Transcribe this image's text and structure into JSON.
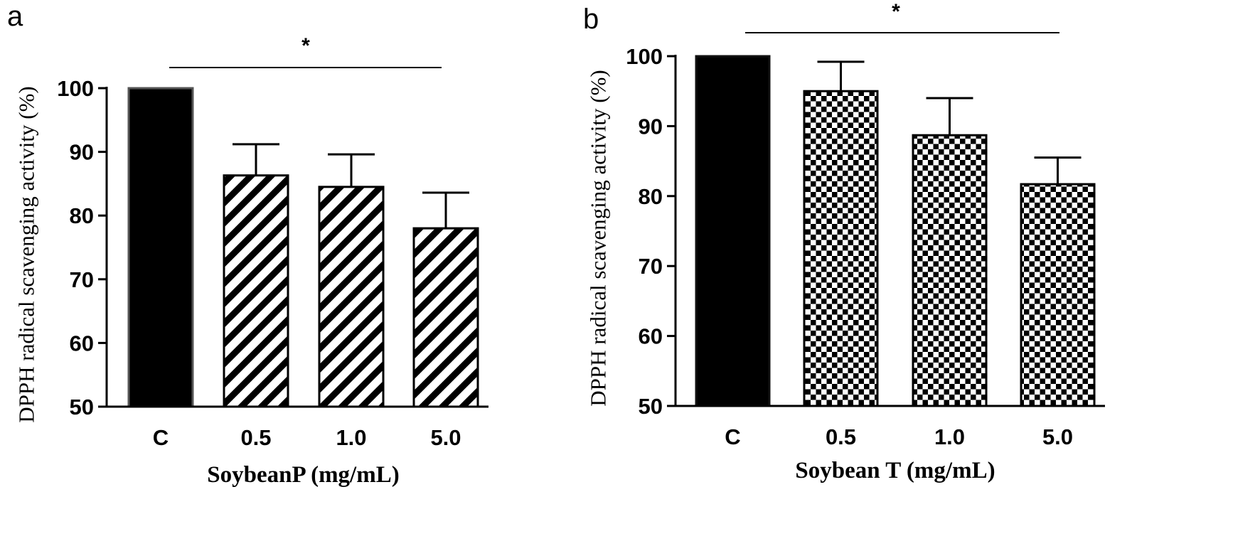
{
  "chart_data": [
    {
      "type": "bar",
      "panel_label": "a",
      "categories": [
        "C",
        "0.5",
        "1.0",
        "5.0"
      ],
      "values": [
        100,
        86.3,
        84.5,
        78.0
      ],
      "errors": [
        0,
        4.9,
        5.1,
        5.6
      ],
      "bar_fills": [
        "solid",
        "diagonal",
        "diagonal",
        "diagonal"
      ],
      "xlabel": "SoybeanP (mg/mL)",
      "ylabel": "DPPH radical scavenging activity (%)",
      "ylim": [
        50,
        100
      ],
      "yticks": [
        50,
        60,
        70,
        80,
        90,
        100
      ],
      "significance": "*",
      "grid": false,
      "colors": {
        "ink": "#000000",
        "control_border": "#555555"
      }
    },
    {
      "type": "bar",
      "panel_label": "b",
      "categories": [
        "C",
        "0.5",
        "1.0",
        "5.0"
      ],
      "values": [
        100,
        95.0,
        88.7,
        81.7
      ],
      "errors": [
        0,
        4.2,
        5.3,
        3.8
      ],
      "bar_fills": [
        "solid",
        "checker",
        "checker",
        "checker"
      ],
      "xlabel": "Soybean T (mg/mL)",
      "ylabel": "DPPH radical scavenging activity (%)",
      "ylim": [
        50,
        100
      ],
      "yticks": [
        50,
        60,
        70,
        80,
        90,
        100
      ],
      "significance": "*",
      "grid": false,
      "colors": {
        "ink": "#000000",
        "control_border": "#111111"
      }
    }
  ]
}
